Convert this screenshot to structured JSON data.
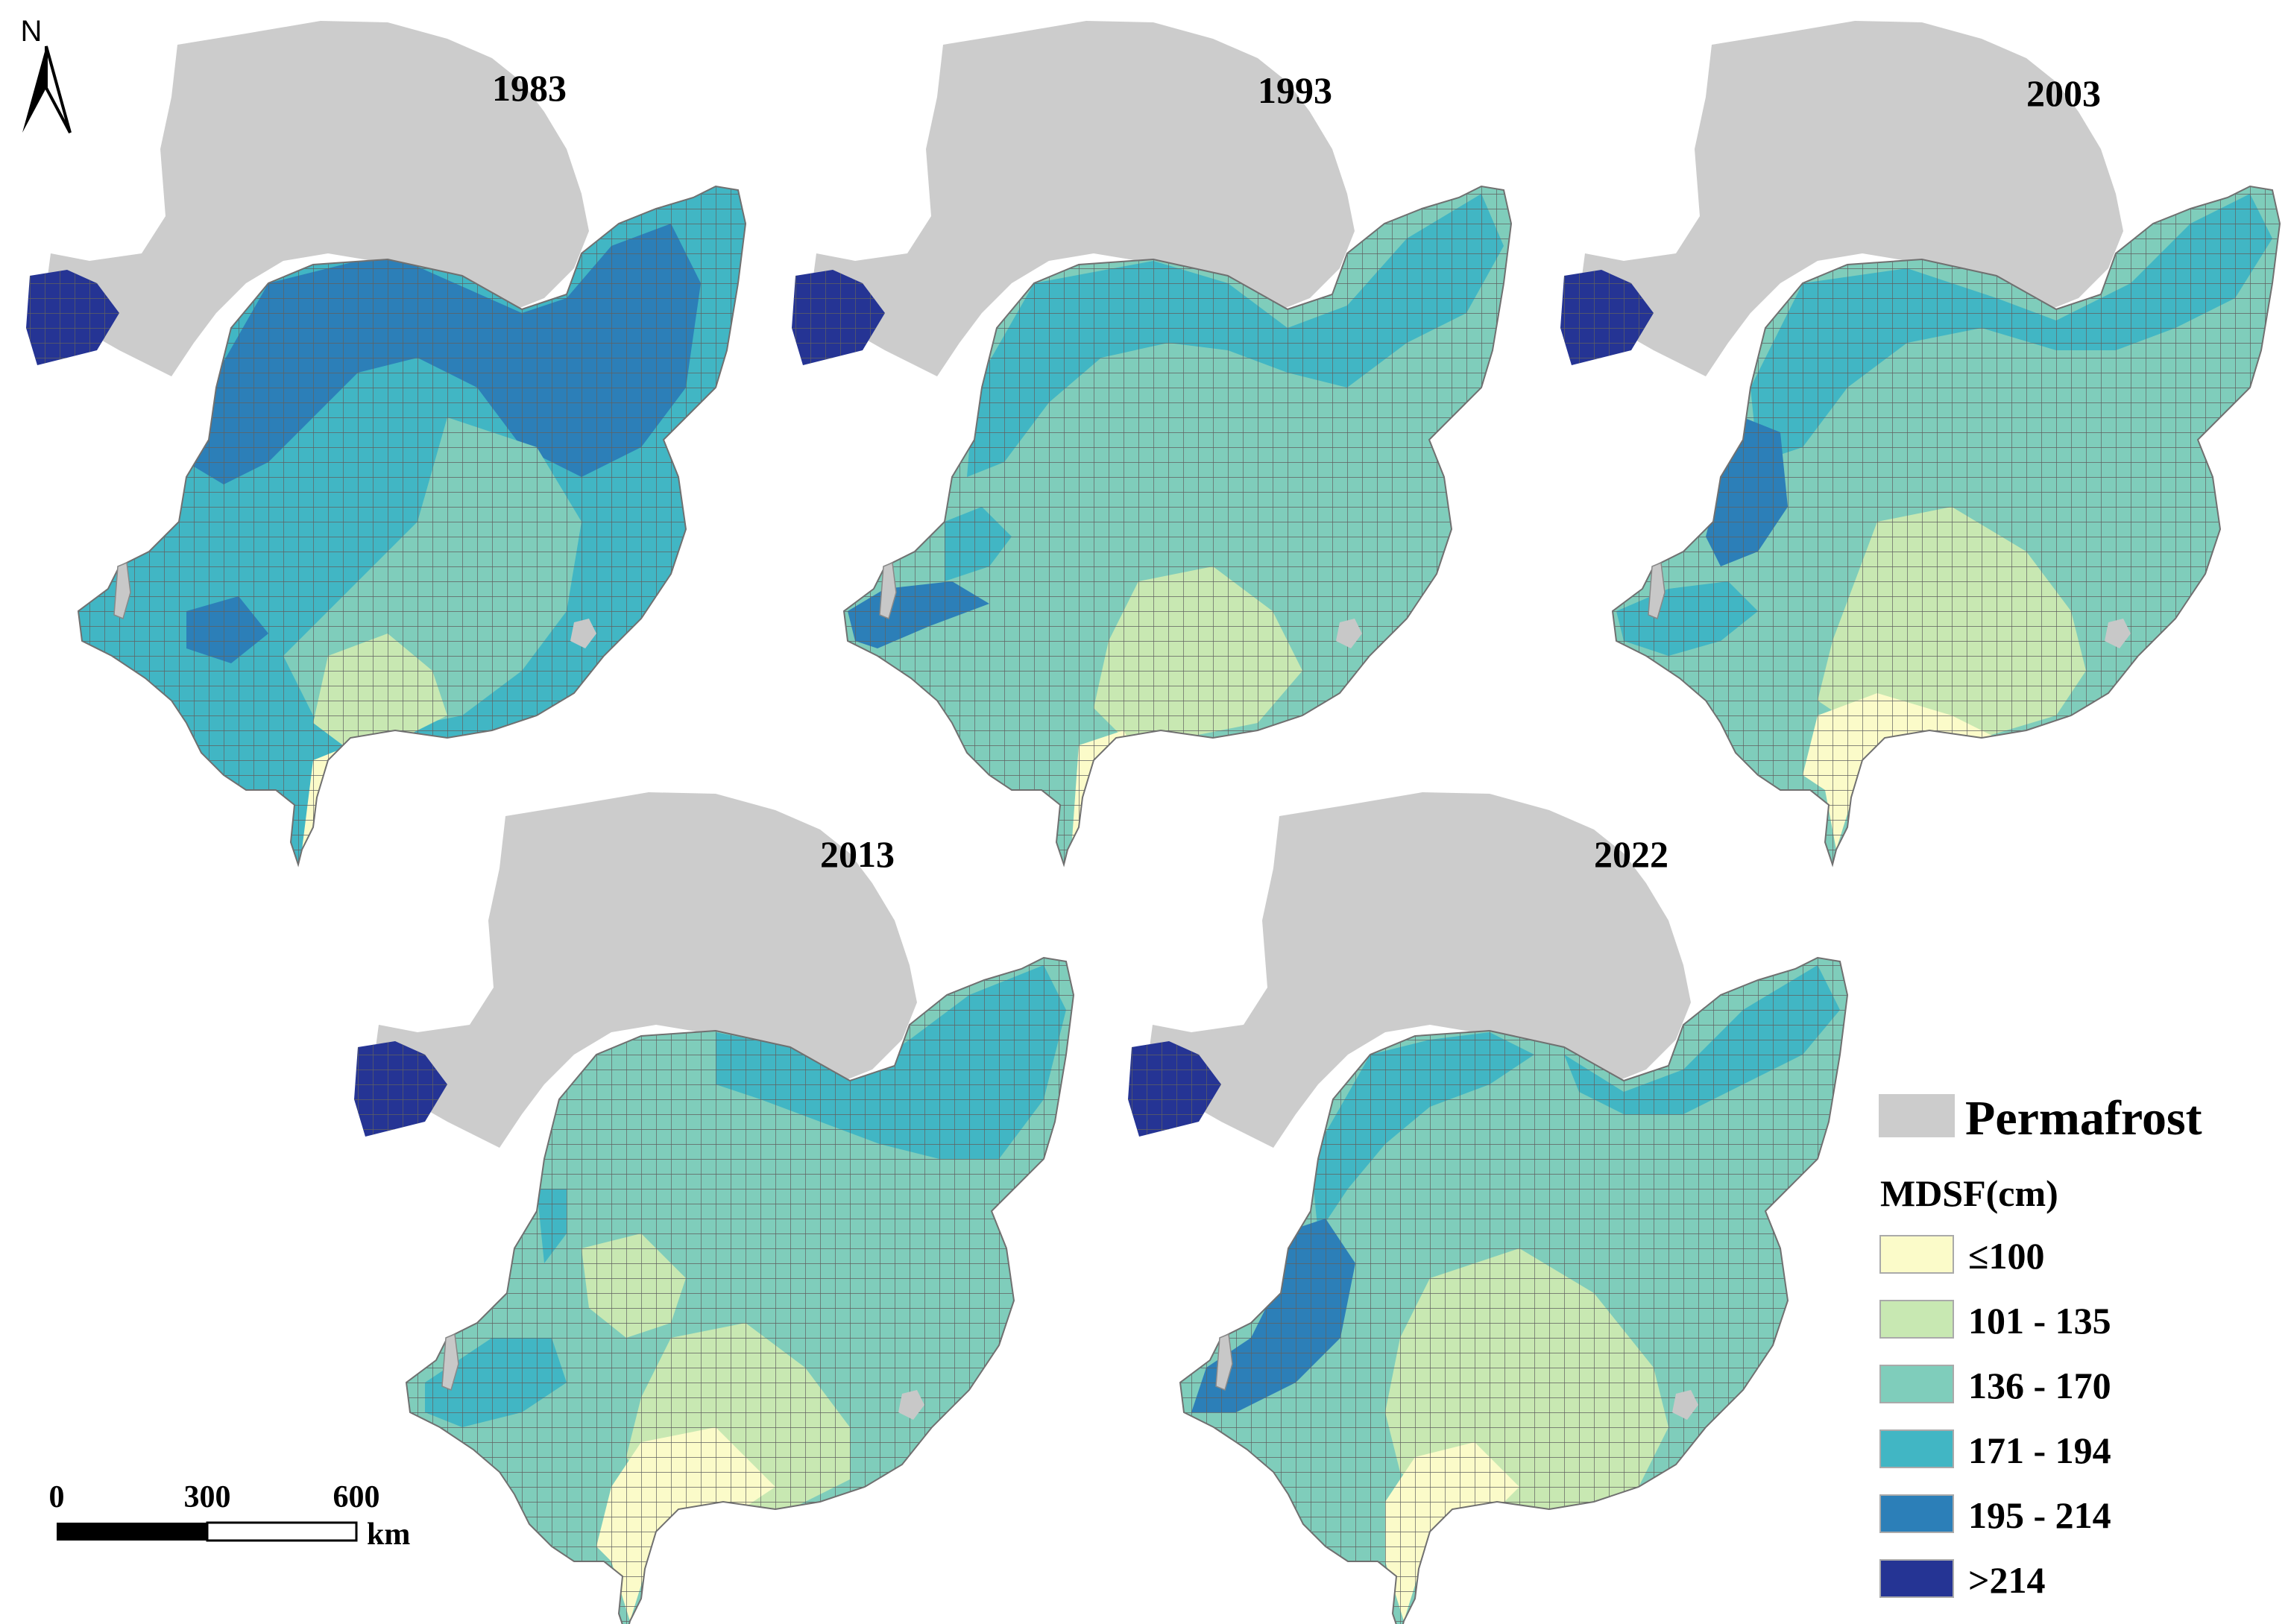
{
  "north_arrow": {
    "letter": "N"
  },
  "panels": [
    {
      "year": "1983",
      "pattern": "p1983"
    },
    {
      "year": "1993",
      "pattern": "p1993"
    },
    {
      "year": "2003",
      "pattern": "p2003"
    },
    {
      "year": "2013",
      "pattern": "p2013"
    },
    {
      "year": "2022",
      "pattern": "p2022"
    }
  ],
  "scale_bar": {
    "labels": [
      "0",
      "300",
      "600"
    ],
    "unit": "km"
  },
  "legend": {
    "permafrost": {
      "label": "Permafrost",
      "color": "#cccccc"
    },
    "title": "MDSF(cm)",
    "classes": [
      {
        "label": "≤100",
        "color": "#fbfbc9"
      },
      {
        "label": "101 - 135",
        "color": "#c8e8b2"
      },
      {
        "label": "136 - 170",
        "color": "#7fcdbb"
      },
      {
        "label": "171 - 194",
        "color": "#41b6c4"
      },
      {
        "label": "195 - 214",
        "color": "#2c7fb8"
      },
      {
        "label": ">214",
        "color": "#253494"
      }
    ]
  }
}
